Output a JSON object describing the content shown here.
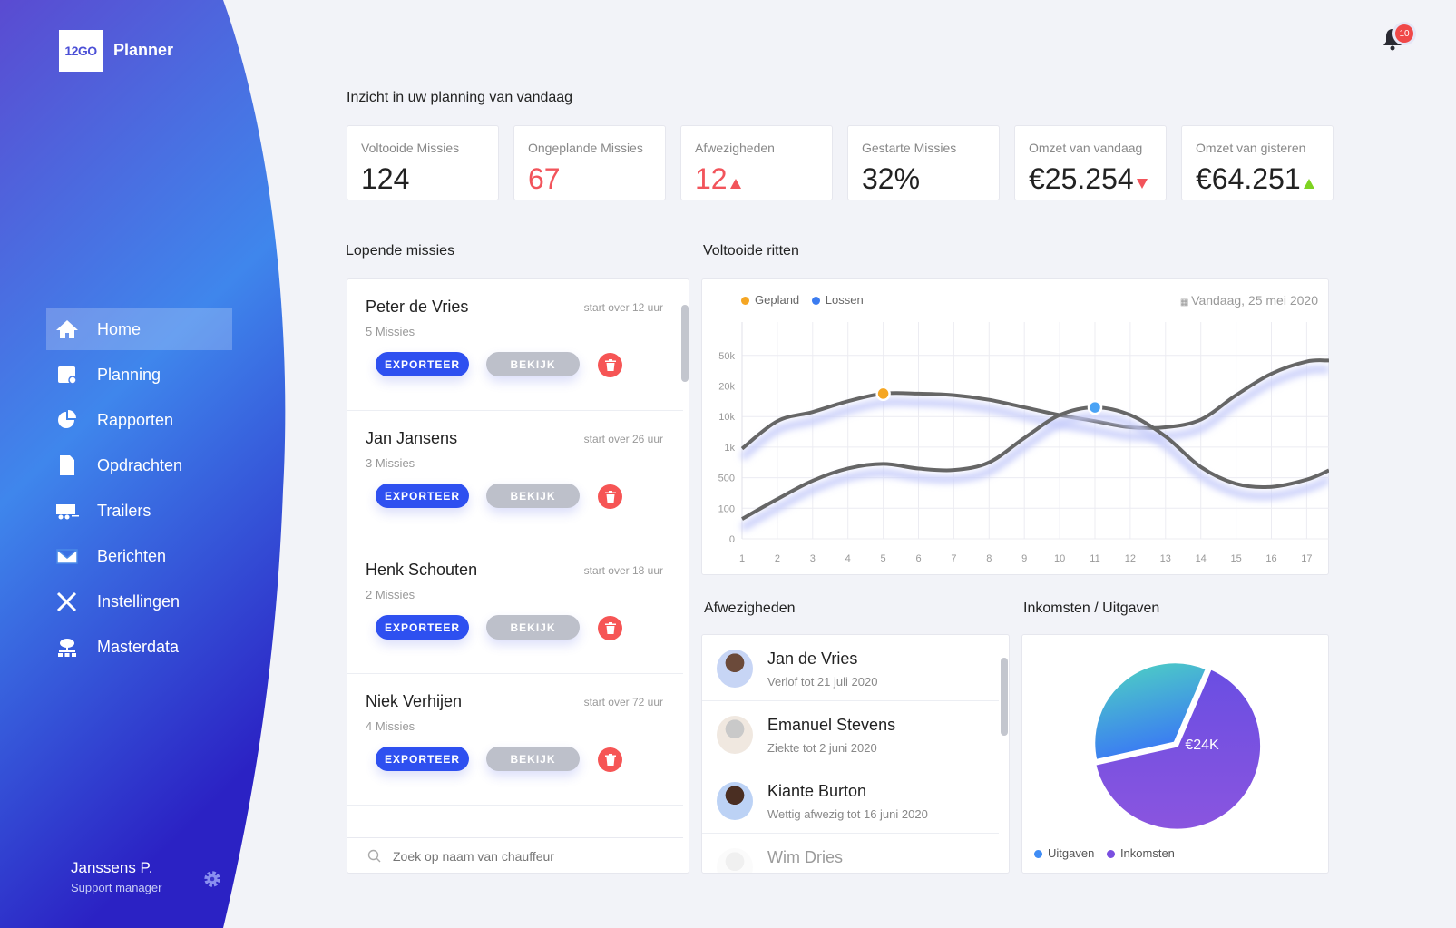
{
  "app": {
    "logo": "12GO",
    "name": "Planner"
  },
  "sidebar": {
    "items": [
      {
        "label": "Home",
        "icon": "home-icon",
        "active": true
      },
      {
        "label": "Planning",
        "icon": "calendar-icon"
      },
      {
        "label": "Rapporten",
        "icon": "pie-chart-icon"
      },
      {
        "label": "Opdrachten",
        "icon": "document-icon"
      },
      {
        "label": "Trailers",
        "icon": "trailer-icon"
      },
      {
        "label": "Berichten",
        "icon": "envelope-icon"
      },
      {
        "label": "Instellingen",
        "icon": "tools-icon"
      },
      {
        "label": "Masterdata",
        "icon": "cloud-network-icon"
      }
    ],
    "user": {
      "name": "Janssens P.",
      "role": "Support manager"
    }
  },
  "header": {
    "notifications": "10"
  },
  "overview": {
    "title": "Inzicht in uw planning van vandaag",
    "stats": [
      {
        "label": "Voltooide Missies",
        "value": "124"
      },
      {
        "label": "Ongeplande Missies",
        "value": "67",
        "color": "#f2545b"
      },
      {
        "label": "Afwezigheden",
        "value": "12",
        "color": "#f2545b",
        "trend": "up-red"
      },
      {
        "label": "Gestarte Missies",
        "value": "32%"
      },
      {
        "label": "Omzet van vandaag",
        "value": "€25.254",
        "trend": "down-red"
      },
      {
        "label": "Omzet van gisteren",
        "value": "€64.251",
        "trend": "up-green"
      }
    ]
  },
  "missions": {
    "title": "Lopende missies",
    "export_label": "EXPORTEER",
    "view_label": "BEKIJK",
    "items": [
      {
        "name": "Peter de Vries",
        "start": "start over 12 uur",
        "count": "5 Missies"
      },
      {
        "name": "Jan Jansens",
        "start": "start over 26 uur",
        "count": "3 Missies"
      },
      {
        "name": "Henk Schouten",
        "start": "start over 18 uur",
        "count": "2 Missies"
      },
      {
        "name": "Niek Verhijen",
        "start": "start over 72 uur",
        "count": "4 Missies"
      }
    ],
    "search_placeholder": "Zoek op naam van chauffeur"
  },
  "chart_data": [
    {
      "type": "line",
      "title": "Voltooide ritten",
      "date": "Vandaag, 25 mei 2020",
      "x": [
        1,
        2,
        3,
        4,
        5,
        6,
        7,
        8,
        9,
        10,
        11,
        12,
        13,
        14,
        15,
        16,
        17
      ],
      "y_ticks": [
        "0",
        "100",
        "500",
        "1k",
        "10k",
        "20k",
        "50k"
      ],
      "y_tick_values": [
        0,
        100,
        500,
        1000,
        10000,
        20000,
        50000
      ],
      "grid": true,
      "legend": "top-left",
      "series": [
        {
          "name": "Gepland",
          "color": "#f5a623",
          "highlight_x": 5,
          "values": [
            975,
            8650,
            11500,
            15000,
            17500,
            17500,
            17000,
            15500,
            13000,
            10500,
            8650,
            6850,
            6850,
            9100,
            17000,
            32000,
            44000
          ]
        },
        {
          "name": "Lossen",
          "color": "#3b7cf0",
          "highlight_x": 11,
          "values": [
            65,
            220,
            460,
            650,
            725,
            650,
            625,
            750,
            3700,
            10500,
            13000,
            10500,
            4150,
            675,
            420,
            380,
            475
          ]
        }
      ]
    },
    {
      "type": "pie",
      "title": "Inkomsten / Uitgaven",
      "center_label": "€24K",
      "slices": [
        {
          "name": "Uitgaven",
          "value": 35,
          "color": "#3f8cf5"
        },
        {
          "name": "Inkomsten",
          "value": 65,
          "color": "#7a4fe0"
        }
      ],
      "legend": "bottom-left"
    }
  ],
  "absences": {
    "title": "Afwezigheden",
    "items": [
      {
        "name": "Jan de Vries",
        "status": "Verlof tot 21 juli 2020"
      },
      {
        "name": "Emanuel Stevens",
        "status": "Ziekte tot 2 juni 2020"
      },
      {
        "name": "Kiante Burton",
        "status": "Wettig afwezig tot 16 juni 2020"
      },
      {
        "name": "Wim Dries",
        "status": ""
      }
    ]
  }
}
